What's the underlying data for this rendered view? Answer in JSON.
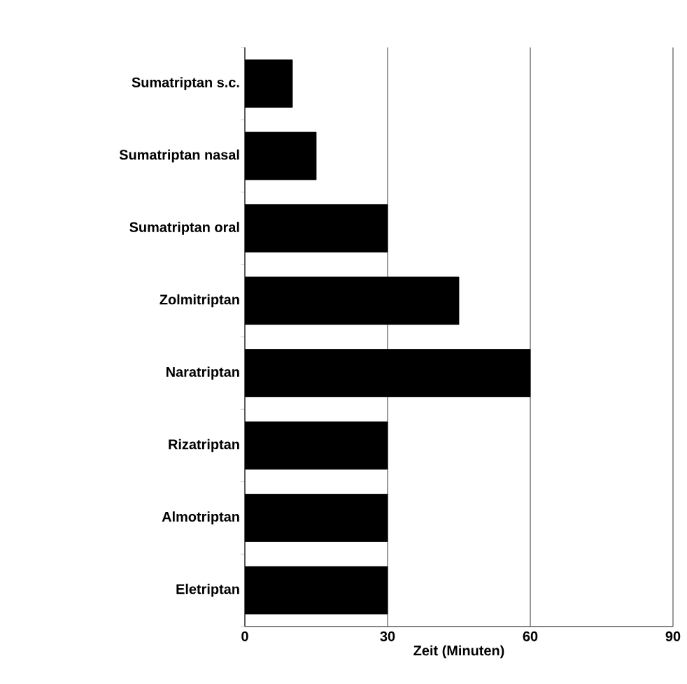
{
  "chart_data": {
    "type": "bar",
    "orientation": "horizontal",
    "xlabel": "Zeit (Minuten)",
    "categories": [
      "Sumatriptan s.c.",
      "Sumatriptan nasal",
      "Sumatriptan oral",
      "Zolmitriptan",
      "Naratriptan",
      "Rizatriptan",
      "Almotriptan",
      "Eletriptan"
    ],
    "values": [
      10,
      15,
      30,
      45,
      60,
      30,
      30,
      30
    ],
    "color": "#000000",
    "xlim": [
      0,
      90
    ],
    "xticks": [
      0,
      30,
      60,
      90
    ],
    "grid": "x"
  }
}
